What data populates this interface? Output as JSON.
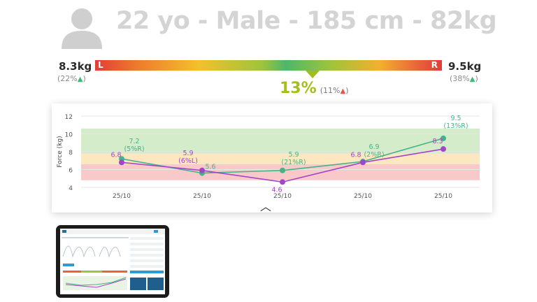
{
  "profile": {
    "icon": "user-silhouette-icon",
    "summary": "22 yo - Male - 185 cm - 82kg"
  },
  "balance": {
    "left_kg": "8.3kg",
    "left_pct": "(22%",
    "right_kg": "9.5kg",
    "right_pct": "(38%",
    "left_marker": "L",
    "right_marker": "R",
    "diff_big": "13%",
    "diff_small": "(11%",
    "arrow_left_color": "#3cb878",
    "arrow_right_color": "#3cb878",
    "arrow_center_color": "#e4584b",
    "accent": "#a7bd19",
    "pointer_position": 0.63
  },
  "chart_data": {
    "type": "line",
    "ylabel": "Force (kg)",
    "categories": [
      "25/10",
      "25/10",
      "25/10",
      "25/10",
      "25/10"
    ],
    "ylim": [
      4,
      12
    ],
    "yticks": [
      "4",
      "6",
      "8",
      "10",
      "12"
    ],
    "bands": [
      {
        "from": 4.8,
        "to": 6.6,
        "color": "#f9c9c9"
      },
      {
        "from": 6.6,
        "to": 7.8,
        "color": "#fde7c0"
      },
      {
        "from": 7.8,
        "to": 10.6,
        "color": "#d4ecc9"
      }
    ],
    "series": [
      {
        "color": "#45b38a",
        "values": [
          7.2,
          5.6,
          5.9,
          6.9,
          9.5
        ],
        "labels": [
          "7.2\n(5%R)",
          "5.6",
          "5.9\n(21%R)",
          "6.9\n(2%R)",
          "9.5\n(13%R)"
        ]
      },
      {
        "color": "#a246c9",
        "values": [
          6.8,
          5.9,
          4.6,
          6.8,
          8.3
        ],
        "labels": [
          "6.8",
          "5.9\n(6%L)",
          "4.6",
          "6.8",
          "8.3"
        ]
      }
    ]
  },
  "controls": {
    "collapse_icon": "chevron-up-icon"
  },
  "device": {
    "icon": "tablet-preview"
  }
}
